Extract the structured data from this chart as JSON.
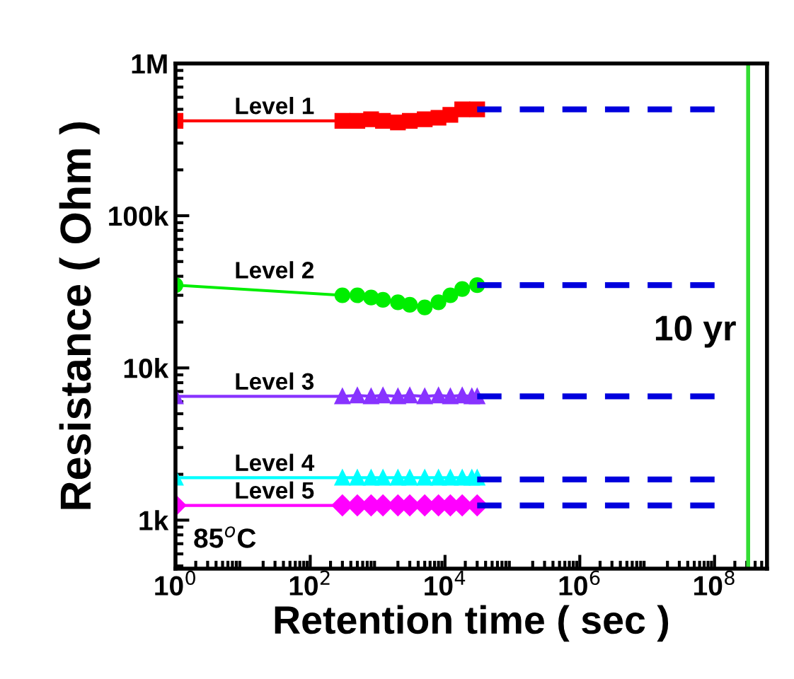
{
  "chart_data": {
    "type": "line",
    "xlabel": "Retention time ( sec )",
    "ylabel": "Resistance ( Ohm )",
    "log": "xy",
    "xlim": [
      1,
      600000000
    ],
    "ylim": [
      480,
      1000000
    ],
    "xticks": [
      {
        "value": 1,
        "label": "10$^{0}$"
      },
      {
        "value": 100,
        "label": "10$^{2}$"
      },
      {
        "value": 10000,
        "label": "10$^{4}$"
      },
      {
        "value": 1000000,
        "label": "10$^{6}$"
      },
      {
        "value": 100000000,
        "label": "10$^{8}$"
      }
    ],
    "yticks": [
      {
        "value": 1000,
        "label": "1k"
      },
      {
        "value": 10000,
        "label": "10k"
      },
      {
        "value": 100000,
        "label": "100k"
      },
      {
        "value": 1000000,
        "label": "1M"
      }
    ],
    "grid": false,
    "legend": false,
    "series": [
      {
        "name": "Level 1",
        "color": "#ff0000",
        "marker": "square",
        "line_style": "solid",
        "x": [
          1,
          300,
          500,
          800,
          1200,
          2000,
          3000,
          5000,
          8000,
          12000,
          18000,
          30000
        ],
        "values": [
          420000,
          420000,
          420000,
          430000,
          420000,
          410000,
          420000,
          430000,
          440000,
          460000,
          500000,
          500000
        ]
      },
      {
        "name": "Level 2",
        "color": "#00ee00",
        "marker": "circle",
        "line_style": "solid",
        "x": [
          1,
          300,
          500,
          800,
          1200,
          2000,
          3000,
          5000,
          8000,
          12000,
          18000,
          30000
        ],
        "values": [
          35000,
          30000,
          30000,
          29000,
          28000,
          27000,
          26000,
          25000,
          27000,
          30000,
          33000,
          35000
        ]
      },
      {
        "name": "Level 3",
        "color": "#8833ff",
        "marker": "triangle",
        "line_style": "solid",
        "x": [
          1,
          300,
          500,
          800,
          1200,
          2000,
          3000,
          5000,
          8000,
          12000,
          18000,
          25000,
          30000
        ],
        "values": [
          6500,
          6500,
          6600,
          6500,
          6600,
          6500,
          6600,
          6500,
          6600,
          6500,
          6600,
          6500,
          6500
        ]
      },
      {
        "name": "Level 4",
        "color": "#00ffff",
        "marker": "triangle",
        "line_style": "solid",
        "x": [
          1,
          300,
          500,
          800,
          1200,
          2000,
          3000,
          5000,
          8000,
          12000,
          18000,
          25000,
          30000
        ],
        "values": [
          1900,
          1900,
          1900,
          1900,
          1900,
          1900,
          1900,
          1900,
          1900,
          1900,
          1900,
          1900,
          1900
        ]
      },
      {
        "name": "Level 5",
        "color": "#ff00ff",
        "marker": "diamond",
        "line_style": "solid",
        "x": [
          1,
          300,
          500,
          800,
          1200,
          2000,
          3000,
          5000,
          8000,
          12000,
          18000,
          30000
        ],
        "values": [
          1250,
          1250,
          1250,
          1250,
          1250,
          1250,
          1250,
          1250,
          1250,
          1250,
          1250,
          1250
        ]
      },
      {
        "color": "#0000dd",
        "marker": "none",
        "line_style": "dashed",
        "x": [
          30000,
          100000000
        ],
        "values": [
          500000,
          500000
        ]
      },
      {
        "color": "#0000dd",
        "marker": "none",
        "line_style": "dashed",
        "x": [
          30000,
          100000000
        ],
        "values": [
          35000,
          35000
        ]
      },
      {
        "color": "#0000dd",
        "marker": "none",
        "line_style": "dashed",
        "x": [
          30000,
          100000000
        ],
        "values": [
          6500,
          6500
        ]
      },
      {
        "color": "#0000dd",
        "marker": "none",
        "line_style": "dashed",
        "x": [
          30000,
          100000000
        ],
        "values": [
          1850,
          1850
        ]
      },
      {
        "color": "#0000dd",
        "marker": "none",
        "line_style": "dashed",
        "x": [
          30000,
          100000000
        ],
        "values": [
          1250,
          1250
        ]
      }
    ],
    "ref_lines": [
      {
        "axis": "x",
        "value": 315000000,
        "label": "10 yr",
        "color": "#33dd33",
        "line_style": "solid"
      }
    ],
    "annotations": [
      "85$^{o}$C"
    ]
  }
}
